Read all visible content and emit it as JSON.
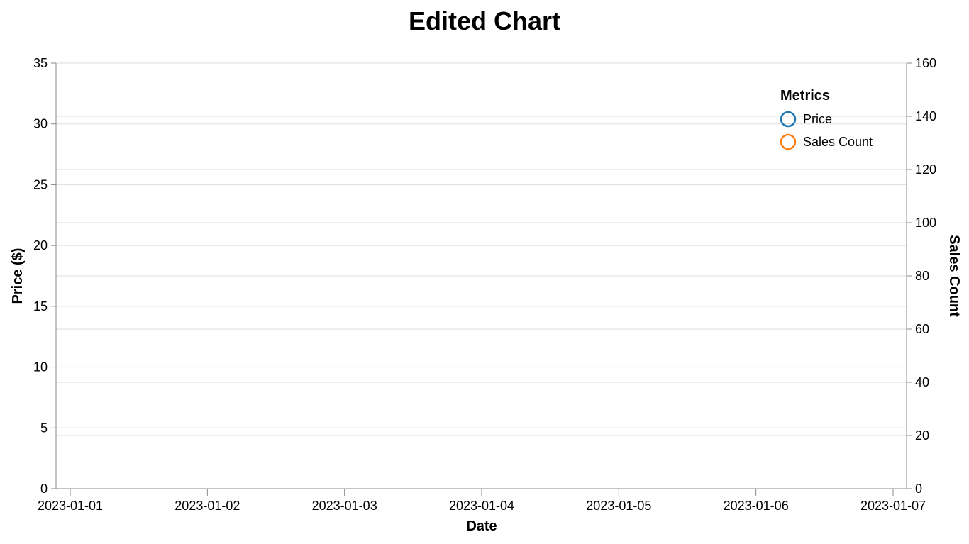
{
  "chart_data": {
    "type": "line",
    "title": "Edited Chart",
    "xlabel": "Date",
    "ylabel_left": "Price ($)",
    "ylabel_right": "Sales Count",
    "x_ticks": [
      "2023-01-01",
      "2023-01-02",
      "2023-01-03",
      "2023-01-04",
      "2023-01-05",
      "2023-01-06",
      "2023-01-07"
    ],
    "y_left_ticks": [
      "0",
      "5",
      "10",
      "15",
      "20",
      "25",
      "30",
      "35"
    ],
    "y_left_lim": [
      0,
      35
    ],
    "y_right_ticks": [
      "0",
      "20",
      "40",
      "60",
      "80",
      "100",
      "120",
      "140",
      "160"
    ],
    "y_right_lim": [
      0,
      160
    ],
    "grid": true,
    "legend": {
      "title": "Metrics",
      "position": "top-right",
      "items": [
        {
          "label": "Price",
          "color": "#1f77b4"
        },
        {
          "label": "Sales Count",
          "color": "#ff7f0e"
        }
      ]
    },
    "series": []
  }
}
